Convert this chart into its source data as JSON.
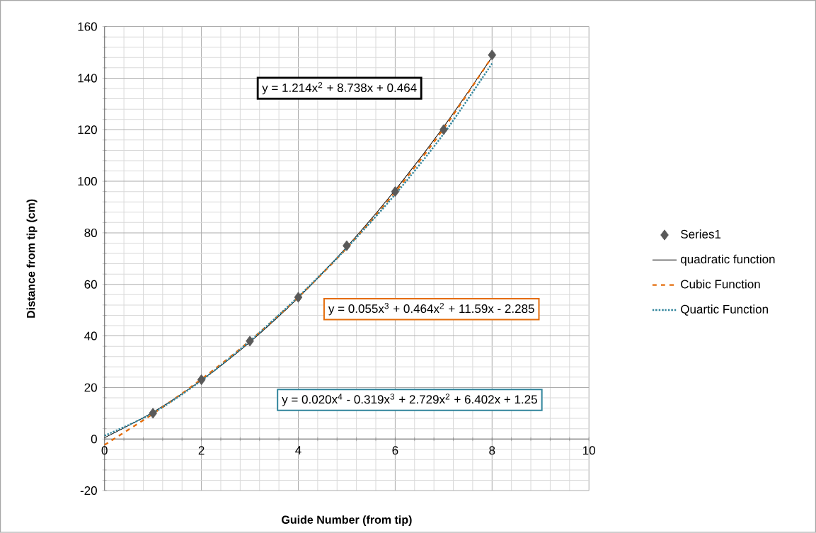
{
  "chart_data": {
    "type": "scatter",
    "xlabel": "Guide Number (from tip)",
    "ylabel": "Distance from tip (cm)",
    "x": [
      1,
      2,
      3,
      4,
      5,
      6,
      7,
      8
    ],
    "series": [
      {
        "name": "Series1",
        "color": "#595959",
        "values": [
          10,
          23,
          38,
          55,
          75,
          96,
          120,
          149
        ]
      },
      {
        "name": "quadratic function",
        "type": "line",
        "marker": "none",
        "color": "#000000",
        "line_style": "solid",
        "x": [
          0,
          1,
          2,
          3,
          4,
          5,
          6,
          7,
          8
        ],
        "values": [
          0.5,
          10.4,
          22.8,
          37.6,
          54.8,
          74.5,
          96.6,
          121.1,
          148.2
        ]
      },
      {
        "name": "Cubic Function",
        "type": "line",
        "marker": "none",
        "color": "#e46c0a",
        "line_style": "dashed",
        "x": [
          0,
          1,
          2,
          3,
          4,
          5,
          6,
          7,
          8
        ],
        "values": [
          -2.3,
          9.8,
          23.2,
          38.1,
          55.0,
          74.1,
          95.8,
          120.4,
          148.3
        ]
      },
      {
        "name": "Quartic Function",
        "type": "line",
        "marker": "none",
        "color": "#31859c",
        "line_style": "dotted",
        "x": [
          0,
          1,
          2,
          3,
          4,
          5,
          6,
          7,
          8
        ],
        "values": [
          1.3,
          10.1,
          22.7,
          38.0,
          55.2,
          74.1,
          94.9,
          118.4,
          145.7
        ]
      }
    ],
    "annotations": [
      "y = 1.214x$^{2}$ + 8.738x + 0.464",
      "y = 0.055x$^{3}$ + 0.464x$^{2}$ + 11.59x - 2.285",
      "y = 0.020x$^{4}$ - 0.319x$^{3}$ + 2.729x$^{2}$ + 6.402x + 1.25"
    ],
    "xlim": [
      0,
      10
    ],
    "ylim": [
      -20,
      160
    ],
    "xticks": [
      0,
      2,
      4,
      6,
      8,
      10
    ],
    "yticks": [
      -20,
      0,
      20,
      40,
      60,
      80,
      100,
      120,
      140,
      160
    ],
    "grid": true,
    "legend": "right",
    "marker": "diamond"
  }
}
